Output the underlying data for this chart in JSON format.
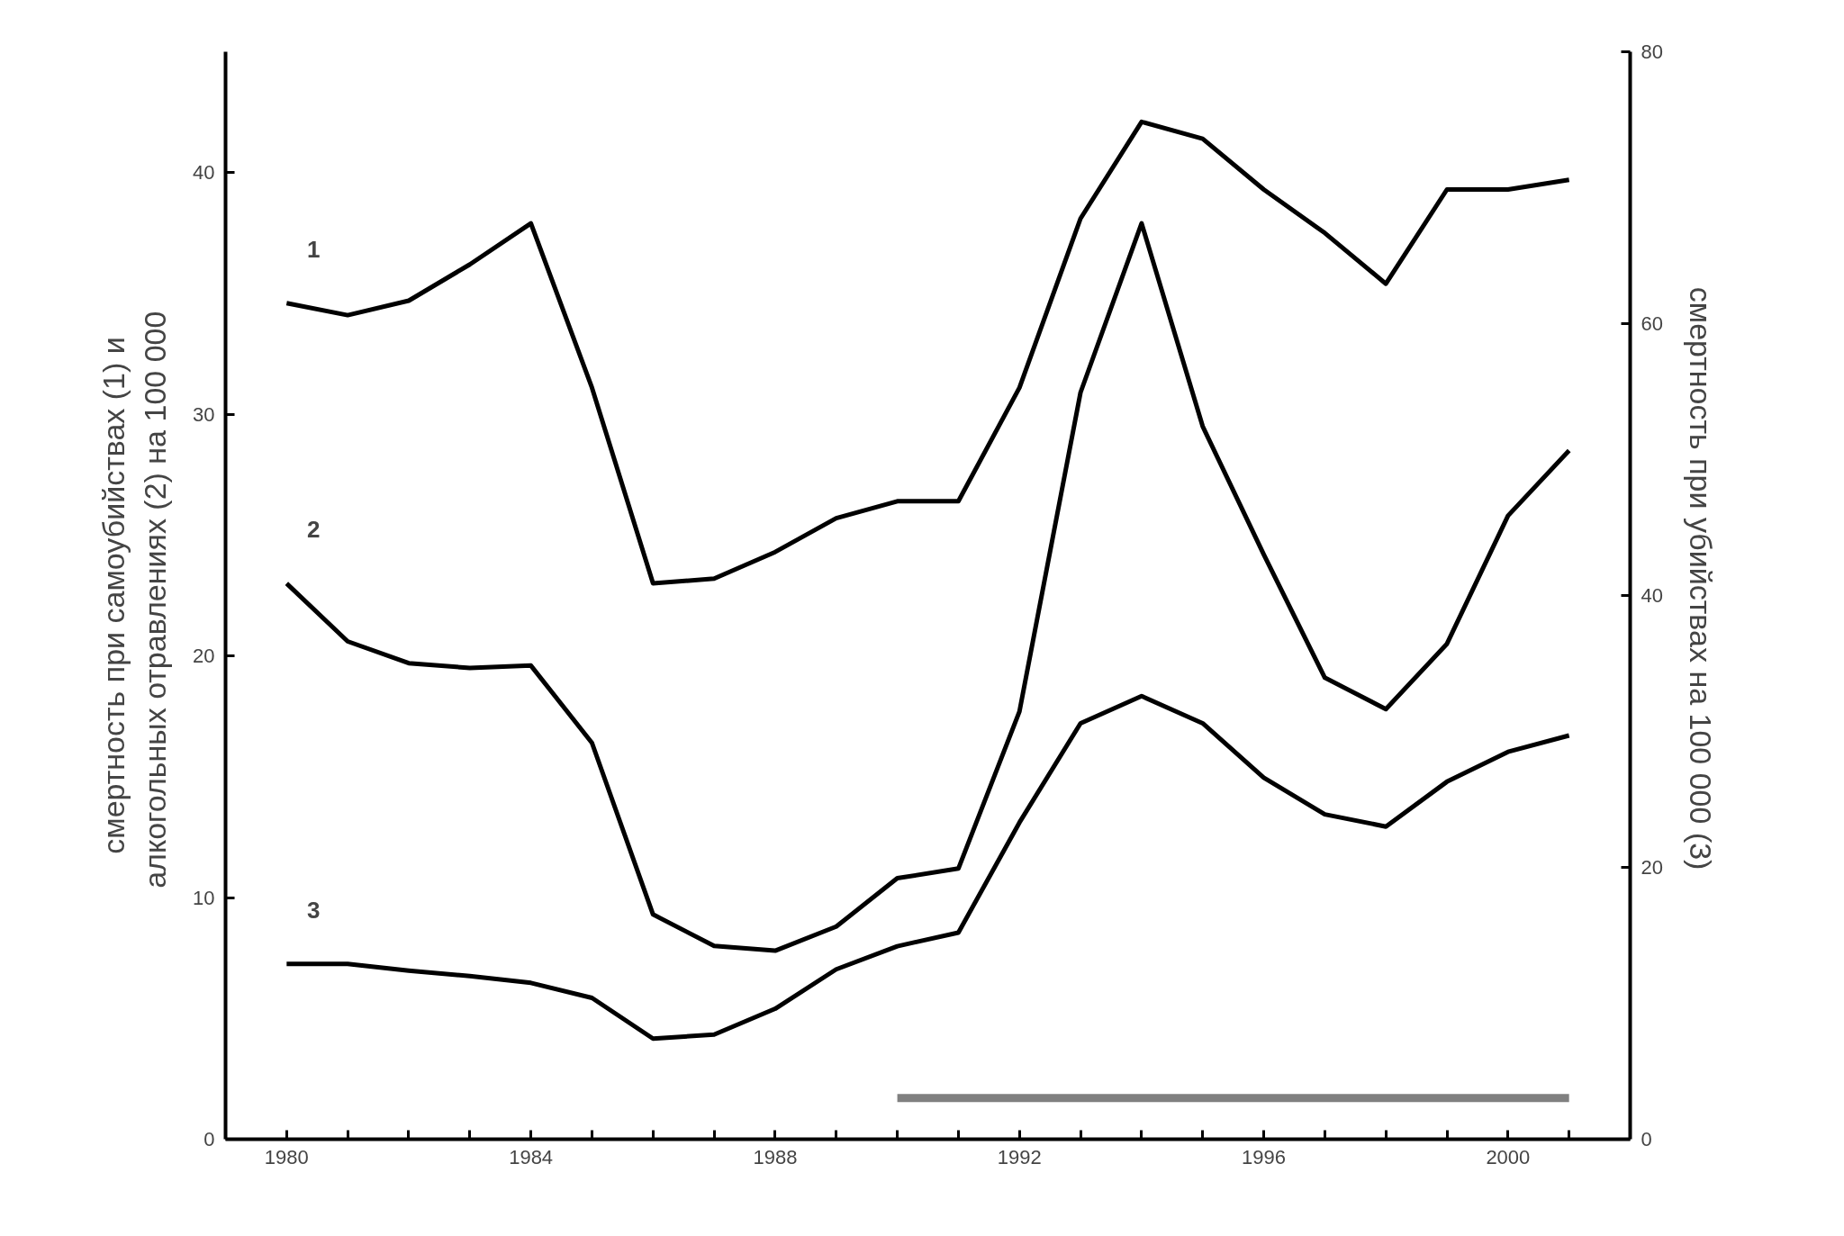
{
  "chart_data": {
    "type": "line",
    "xlabel": null,
    "ylabel": "смертность при самоубийствах (1) и\nалкогольных отравлениях (2) на  100 000",
    "y2label": "смертность  при  убийствах  на 100 000  (3)",
    "x": [
      1980,
      1981,
      1982,
      1983,
      1984,
      1985,
      1986,
      1987,
      1988,
      1989,
      1990,
      1991,
      1992,
      1993,
      1994,
      1995,
      1996,
      1997,
      1998,
      1999,
      2000,
      2001
    ],
    "series": [
      {
        "name": "1",
        "color": "#000000",
        "values": [
          34.6,
          34.1,
          34.7,
          36.2,
          37.9,
          31.1,
          23.0,
          23.2,
          24.3,
          25.7,
          26.4,
          26.4,
          31.1,
          38.1,
          42.1,
          41.4,
          39.3,
          37.5,
          35.4,
          39.3,
          39.3,
          39.7
        ]
      },
      {
        "name": "2",
        "color": "#000000",
        "values": [
          23.0,
          20.6,
          19.7,
          19.5,
          19.6,
          16.4,
          9.3,
          8.0,
          7.8,
          8.8,
          10.8,
          11.2,
          17.7,
          30.9,
          37.9,
          29.5,
          24.2,
          19.1,
          17.8,
          20.5,
          25.8,
          28.5
        ]
      },
      {
        "name": "3",
        "color": "#000000",
        "axis": "y2",
        "values": [
          12.9,
          12.9,
          12.4,
          12.0,
          11.5,
          10.4,
          7.4,
          7.7,
          9.6,
          12.5,
          14.2,
          15.2,
          23.3,
          30.6,
          32.6,
          30.6,
          26.6,
          23.9,
          23.0,
          26.3,
          28.5,
          29.7
        ]
      },
      {
        "color": "#808080",
        "x": [
          1990,
          2001
        ],
        "values": [
          1.7,
          1.7
        ]
      }
    ],
    "xlim": [
      1979,
      2002
    ],
    "xticks": [
      1980,
      {
        "value": 1981,
        "label": null
      },
      {
        "value": 1982,
        "label": null
      },
      {
        "value": 1983,
        "label": null
      },
      1984,
      {
        "value": 1985,
        "label": null
      },
      {
        "value": 1986,
        "label": null
      },
      {
        "value": 1987,
        "label": null
      },
      1988,
      {
        "value": 1989,
        "label": null
      },
      {
        "value": 1990,
        "label": null
      },
      {
        "value": 1991,
        "label": null
      },
      1992,
      {
        "value": 1993,
        "label": null
      },
      {
        "value": 1994,
        "label": null
      },
      {
        "value": 1995,
        "label": null
      },
      1996,
      {
        "value": 1997,
        "label": null
      },
      {
        "value": 1998,
        "label": null
      },
      {
        "value": 1999,
        "label": null
      },
      2000,
      {
        "value": 2001,
        "label": null
      }
    ],
    "ylim": [
      0,
      45
    ],
    "yticks": [
      0,
      10,
      20,
      30,
      40
    ],
    "y2lim": [
      0,
      80
    ],
    "y2ticks": [
      0,
      20,
      40,
      60,
      80
    ],
    "grid": false,
    "marker": "none",
    "line_style": "solid"
  }
}
